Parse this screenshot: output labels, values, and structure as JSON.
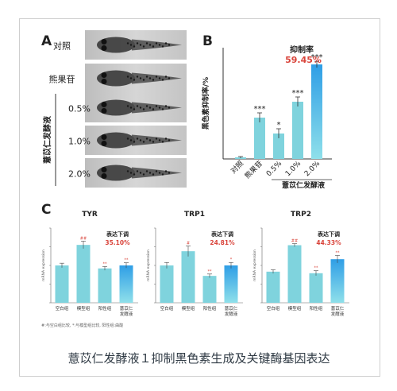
{
  "caption": "薏苡仁发酵液１抑制黑色素生成及关键酶基因表达",
  "panel_a": {
    "letter": "A",
    "rows": [
      {
        "label": "对照"
      },
      {
        "label": "熊果苷"
      },
      {
        "label": "0.5%"
      },
      {
        "label": "1.0%"
      },
      {
        "label": "2.0%"
      }
    ],
    "group_label": "薏苡仁发酵液"
  },
  "chart_data": [
    {
      "type": "bar",
      "panel": "B",
      "ylabel": "黑色素抑制率/%",
      "categories": [
        "对照",
        "熊果苷",
        "0.5%",
        "1.0%",
        "2.0%"
      ],
      "values": [
        1,
        26,
        16,
        36,
        59.45
      ],
      "errors": [
        0.5,
        3,
        3,
        3,
        2
      ],
      "significance": [
        "",
        "***",
        "*",
        "***",
        "***"
      ],
      "group_label": "薏苡仁发酵液",
      "annotation": {
        "title": "抑制率",
        "value": "59.45%"
      },
      "colors": [
        "#7fd3dd",
        "#7fd3dd",
        "#7fd3dd",
        "#7fd3dd",
        "#36a5e3"
      ]
    },
    {
      "type": "bar",
      "panel": "C",
      "title": "TYR",
      "ylabel": "mRNA expression",
      "categories": [
        "空白组",
        "模型组",
        "阳性组",
        "薏苡仁发酵液"
      ],
      "values": [
        1.0,
        1.55,
        0.92,
        1.0
      ],
      "errors": [
        0.06,
        0.1,
        0.05,
        0.07
      ],
      "significance": [
        "",
        "##",
        "**",
        "**"
      ],
      "annotation": {
        "title": "表达下调",
        "value": "35.10%"
      },
      "ylim": [
        0,
        2
      ]
    },
    {
      "type": "bar",
      "panel": "C",
      "title": "TRP1",
      "ylabel": "mRNA expression",
      "categories": [
        "空白组",
        "模型组",
        "阳性组",
        "薏苡仁发酵液"
      ],
      "values": [
        1.0,
        1.38,
        0.72,
        1.0
      ],
      "errors": [
        0.08,
        0.14,
        0.05,
        0.08
      ],
      "significance": [
        "",
        "#",
        "**",
        "*"
      ],
      "annotation": {
        "title": "表达下调",
        "value": "24.81%"
      },
      "ylim": [
        0,
        2
      ]
    },
    {
      "type": "bar",
      "panel": "C",
      "title": "TRP2",
      "ylabel": "mRNA expression",
      "categories": [
        "空白组",
        "模型组",
        "阳性组",
        "薏苡仁发酵液"
      ],
      "values": [
        1.0,
        1.85,
        0.95,
        1.4
      ],
      "errors": [
        0.06,
        0.05,
        0.08,
        0.12
      ],
      "significance": [
        "",
        "##",
        "**",
        "**"
      ],
      "annotation": {
        "title": "表达下调",
        "value": "44.33%"
      },
      "ylim": [
        0,
        2.4
      ]
    }
  ],
  "panel_b_letter": "B",
  "panel_c_letter": "C",
  "footnote": "#:与空白组比较, *:与模型组比较, 阳性组:曲酸",
  "colors": {
    "bar": "#7fd3dd",
    "bar_gradient_top": "#39a7e6",
    "red": "#d9443b",
    "dark": "#333333"
  }
}
